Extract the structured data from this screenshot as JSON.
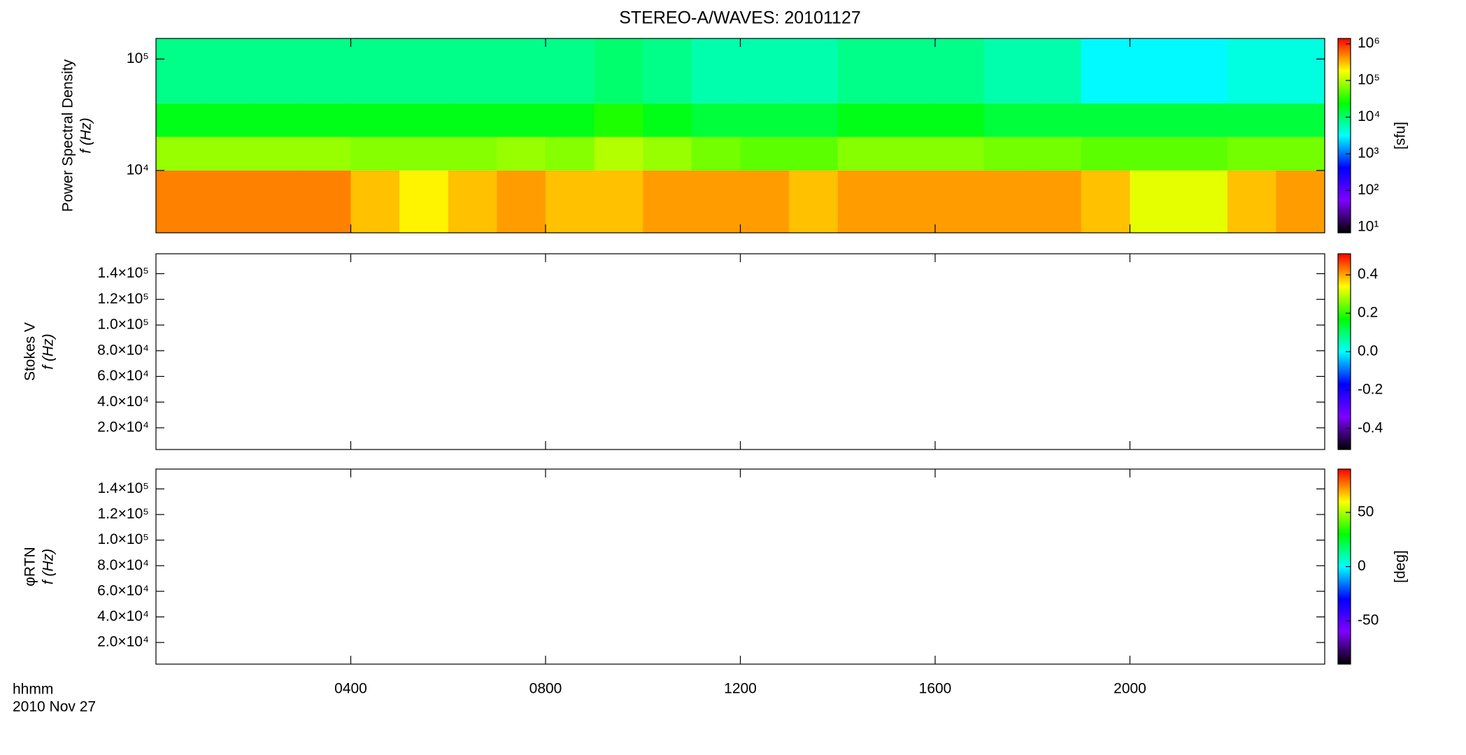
{
  "colormap": [
    "#000000",
    "#7f00ff",
    "#0000ff",
    "#00ffff",
    "#00ff00",
    "#ffff00",
    "#ff0000"
  ],
  "x_axis": {
    "label": "hhmm",
    "date": "2010 Nov 27"
  },
  "chart_data": [
    {
      "type": "heatmap",
      "title": "STEREO-A/WAVES: 20101127",
      "ylabel": [
        "Power Spectral Density",
        "f (Hz)"
      ],
      "yscale": "log",
      "ylim": [
        2760,
        153000
      ],
      "yticks": [
        {
          "value": 10000,
          "label": "10⁴"
        },
        {
          "value": 100000,
          "label": "10⁵"
        }
      ],
      "xlim": [
        0,
        24
      ],
      "x_edges": [
        0,
        1,
        2,
        3,
        4,
        5,
        6,
        7,
        8,
        9,
        10,
        11,
        12,
        13,
        14,
        15,
        16,
        17,
        18,
        19,
        20,
        21,
        22,
        23,
        24
      ],
      "y_edges": [
        2760,
        10000,
        20000,
        40000,
        153000
      ],
      "z": [
        [
          500000,
          500000,
          500000,
          500000,
          300000,
          200000,
          300000,
          400000,
          300000,
          300000,
          400000,
          400000,
          400000,
          300000,
          400000,
          400000,
          400000,
          400000,
          400000,
          300000,
          150000,
          150000,
          300000,
          400000
        ],
        [
          80000,
          80000,
          80000,
          80000,
          70000,
          70000,
          70000,
          80000,
          70000,
          100000,
          80000,
          60000,
          50000,
          50000,
          70000,
          70000,
          70000,
          60000,
          60000,
          50000,
          50000,
          50000,
          60000,
          60000
        ],
        [
          20000,
          20000,
          20000,
          20000,
          20000,
          20000,
          20000,
          20000,
          20000,
          30000,
          20000,
          15000,
          15000,
          15000,
          20000,
          20000,
          20000,
          15000,
          15000,
          15000,
          15000,
          15000,
          15000,
          15000
        ],
        [
          8000,
          8000,
          8000,
          8000,
          8000,
          8000,
          8000,
          8000,
          8000,
          10000,
          8000,
          6000,
          6000,
          6000,
          8000,
          8000,
          8000,
          6000,
          6000,
          3000,
          3000,
          3000,
          4000,
          4000
        ]
      ],
      "colorbar": {
        "label": "[sfu]",
        "scale": "log",
        "lim": [
          7,
          1400000
        ],
        "ticks": [
          {
            "value": 10,
            "label": "10¹"
          },
          {
            "value": 100,
            "label": "10²"
          },
          {
            "value": 1000,
            "label": "10³"
          },
          {
            "value": 10000,
            "label": "10⁴"
          },
          {
            "value": 100000,
            "label": "10⁵"
          },
          {
            "value": 1000000,
            "label": "10⁶"
          }
        ]
      }
    },
    {
      "type": "heatmap",
      "ylabel": [
        "Stokes V",
        "f (Hz)"
      ],
      "yscale": "linear",
      "ylim": [
        3100,
        155500
      ],
      "yticks": [
        {
          "value": 20000,
          "label": "2.0×10⁴"
        },
        {
          "value": 40000,
          "label": "4.0×10⁴"
        },
        {
          "value": 60000,
          "label": "6.0×10⁴"
        },
        {
          "value": 80000,
          "label": "8.0×10⁴"
        },
        {
          "value": 100000,
          "label": "1.0×10⁵"
        },
        {
          "value": 120000,
          "label": "1.2×10⁵"
        },
        {
          "value": 140000,
          "label": "1.4×10⁵"
        }
      ],
      "xlim": [
        0,
        24
      ],
      "colorbar": {
        "scale": "linear",
        "lim": [
          -0.51,
          0.51
        ],
        "ticks": [
          -0.4,
          -0.2,
          {
            "value": 0,
            "label": "0.0"
          },
          0.2,
          0.4
        ]
      }
    },
    {
      "type": "heatmap",
      "ylabel": [
        "φRTN",
        "f (Hz)"
      ],
      "yscale": "linear",
      "ylim": [
        3100,
        155500
      ],
      "yticks": [
        {
          "value": 20000,
          "label": "2.0×10⁴"
        },
        {
          "value": 40000,
          "label": "4.0×10⁴"
        },
        {
          "value": 60000,
          "label": "6.0×10⁴"
        },
        {
          "value": 80000,
          "label": "8.0×10⁴"
        },
        {
          "value": 100000,
          "label": "1.0×10⁵"
        },
        {
          "value": 120000,
          "label": "1.2×10⁵"
        },
        {
          "value": 140000,
          "label": "1.4×10⁵"
        }
      ],
      "xlim": [
        0,
        24
      ],
      "xticks": [
        {
          "value": 4,
          "label": "0400"
        },
        {
          "value": 8,
          "label": "0800"
        },
        {
          "value": 12,
          "label": "1200"
        },
        {
          "value": 16,
          "label": "1600"
        },
        {
          "value": 20,
          "label": "2000"
        }
      ],
      "colorbar": {
        "label": "[deg]",
        "scale": "linear",
        "lim": [
          -90,
          90
        ],
        "ticks": [
          -50,
          0,
          50
        ]
      }
    }
  ]
}
